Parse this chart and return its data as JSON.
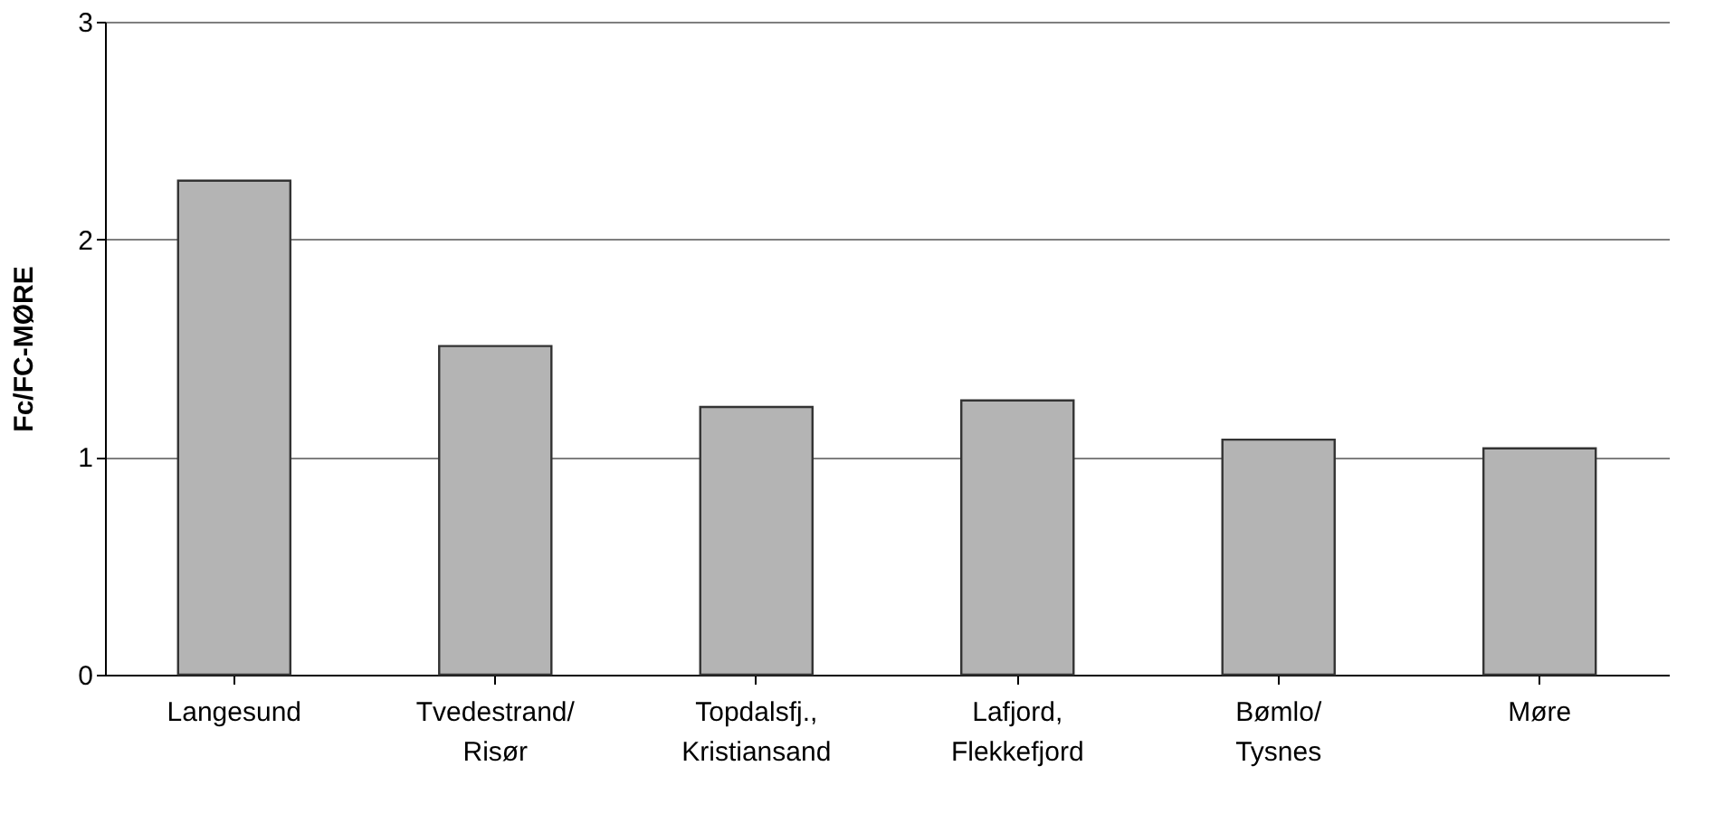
{
  "chart_data": {
    "type": "bar",
    "ylabel": "Fc/FC-MØRE",
    "categories": [
      "Langesund",
      "Tvedestrand/\nRisør",
      "Topdalsfj.,\nKristiansand",
      "Lafjord,\nFlekkefjord",
      "Bømlo/\nTysnes",
      "Møre"
    ],
    "values": [
      2.27,
      1.51,
      1.23,
      1.26,
      1.08,
      1.04
    ],
    "color": "#b4b4b4",
    "ylim": [
      0,
      3
    ],
    "yticks": [
      0,
      1,
      2,
      3
    ],
    "grid": "y"
  }
}
